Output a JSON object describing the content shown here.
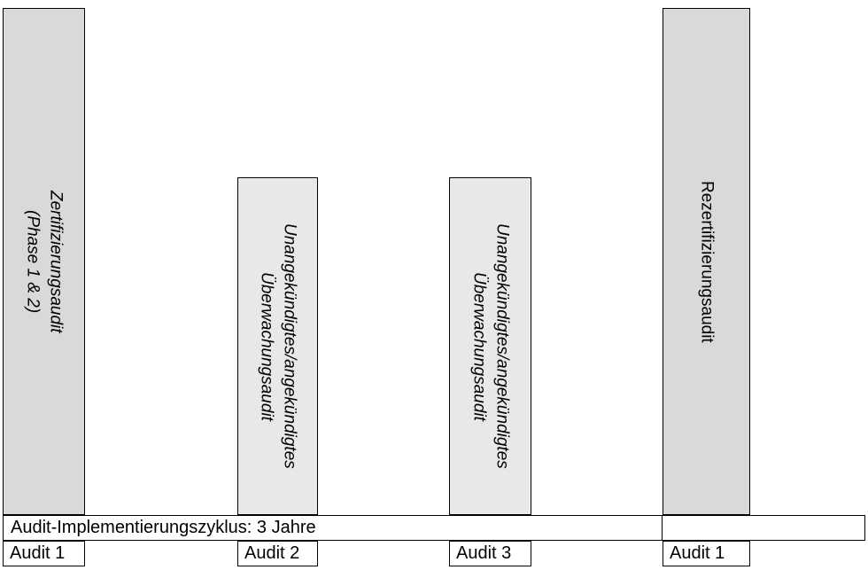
{
  "bars": [
    {
      "name": "zertifizierungsaudit",
      "lines": [
        "Zertifizierungsaudit",
        "(Phase 1 & 2)"
      ],
      "italic": true,
      "fill": "#d9d9d9"
    },
    {
      "name": "ueberwachungsaudit-1",
      "lines": [
        "Unangekündigtes/angekündigtes",
        "Überwachungsaudit"
      ],
      "italic": true,
      "fill": "#e8e8e8"
    },
    {
      "name": "ueberwachungsaudit-2",
      "lines": [
        "Unangekündigtes/angekündigtes",
        "Überwachungsaudit"
      ],
      "italic": true,
      "fill": "#e8e8e8"
    },
    {
      "name": "rezertifizierungsaudit",
      "lines": [
        "Rezertifizierungsaudit"
      ],
      "italic": false,
      "fill": "#d9d9d9"
    }
  ],
  "timeline": {
    "label": "Audit-Implementierungszyklus: 3 Jahre"
  },
  "audit_markers": [
    {
      "label": "Audit 1"
    },
    {
      "label": "Audit 2"
    },
    {
      "label": "Audit 3"
    },
    {
      "label": "Audit 1"
    }
  ],
  "colors": {
    "bar_dark_gray": "#d9d9d9",
    "bar_light_gray": "#e8e8e8",
    "border_black": "#000000",
    "background_white": "#ffffff"
  }
}
